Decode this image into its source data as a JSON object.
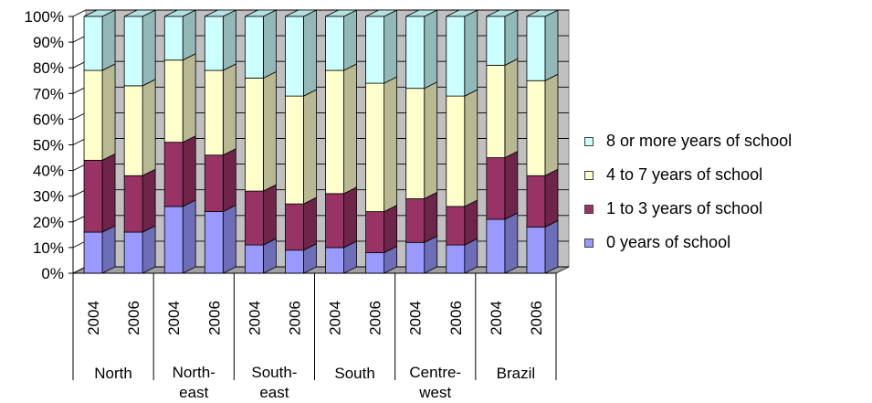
{
  "chart_data": {
    "type": "bar",
    "stacked": "100%",
    "three_d": true,
    "title": "",
    "xlabel": "",
    "ylabel": "",
    "ylim": [
      0,
      100
    ],
    "y_ticks": [
      "0%",
      "10%",
      "20%",
      "30%",
      "40%",
      "50%",
      "60%",
      "70%",
      "80%",
      "90%",
      "100%"
    ],
    "grid": "horizontal",
    "legend_position": "right",
    "groups": [
      {
        "label": "North",
        "categories": [
          "2004",
          "2006"
        ]
      },
      {
        "label": "North-east",
        "categories": [
          "2004",
          "2006"
        ]
      },
      {
        "label": "South-east",
        "categories": [
          "2004",
          "2006"
        ]
      },
      {
        "label": "South",
        "categories": [
          "2004",
          "2006"
        ]
      },
      {
        "label": "Centre-west",
        "categories": [
          "2004",
          "2006"
        ]
      },
      {
        "label": "Brazil",
        "categories": [
          "2004",
          "2006"
        ]
      }
    ],
    "series": [
      {
        "name": "0 years of school",
        "color": "#9999ff",
        "values": [
          16,
          16,
          26,
          24,
          11,
          9,
          10,
          8,
          12,
          11,
          21,
          18
        ]
      },
      {
        "name": "1 to 3 years of school",
        "color": "#993366",
        "values": [
          28,
          22,
          25,
          22,
          21,
          18,
          21,
          16,
          17,
          15,
          24,
          20
        ]
      },
      {
        "name": "4 to 7 years of school",
        "color": "#ffffcc",
        "values": [
          35,
          35,
          32,
          33,
          44,
          42,
          48,
          50,
          43,
          43,
          36,
          37
        ]
      },
      {
        "name": "8 or more years of school",
        "color": "#ccffff",
        "values": [
          21,
          27,
          17,
          21,
          24,
          31,
          21,
          26,
          28,
          31,
          19,
          25
        ]
      }
    ]
  }
}
